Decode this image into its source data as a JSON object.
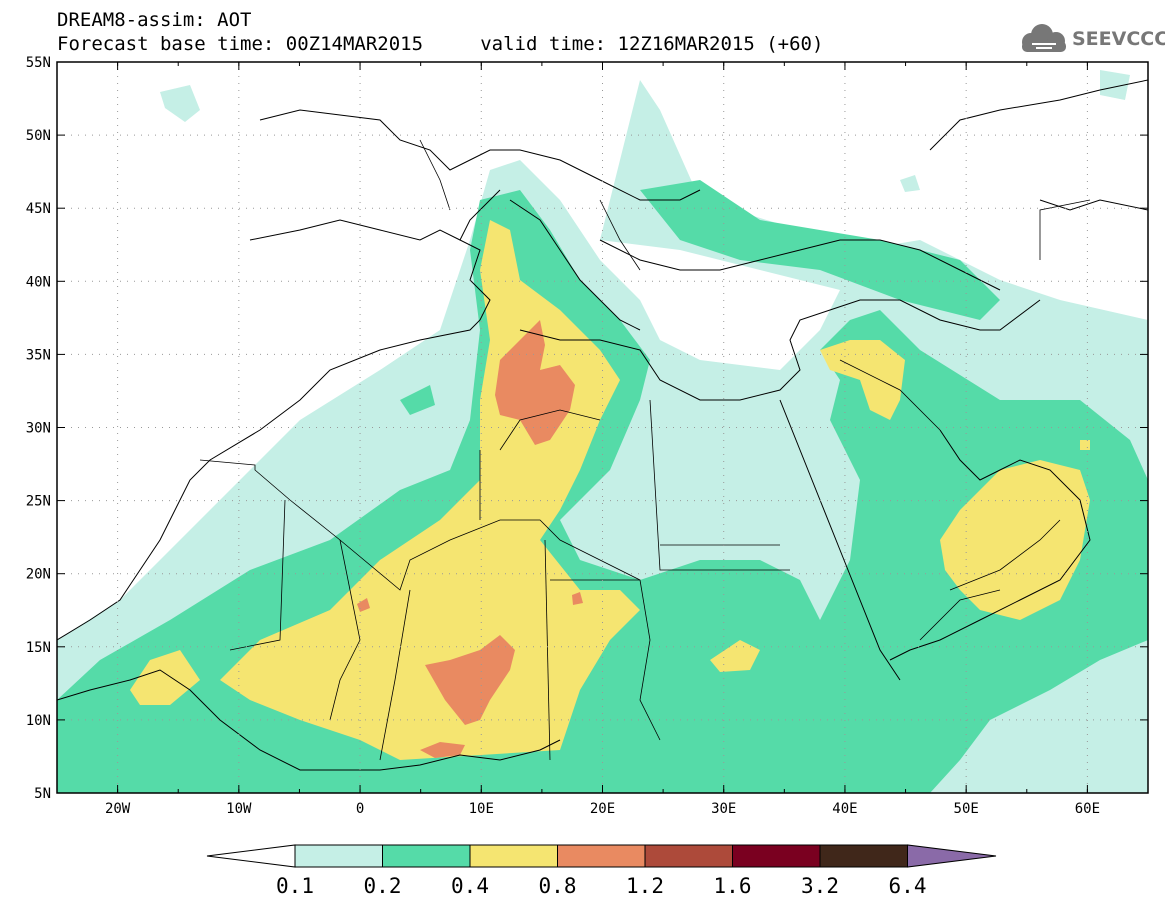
{
  "header": {
    "title_line1": "DREAM8-assim: AOT",
    "title_line2": "Forecast base time: 00Z14MAR2015     valid time: 12Z16MAR2015 (+60)"
  },
  "logo": {
    "text": "SEEVCCC",
    "icon": "cloud-logo-icon"
  },
  "map": {
    "lat_labels": [
      "55N",
      "50N",
      "45N",
      "40N",
      "35N",
      "30N",
      "25N",
      "20N",
      "15N",
      "10N",
      "5N"
    ],
    "lon_labels": [
      "20W",
      "10W",
      "0",
      "10E",
      "20E",
      "30E",
      "40E",
      "50E",
      "60E"
    ],
    "lon_range": [
      -25,
      65
    ],
    "lat_range": [
      5,
      55
    ]
  },
  "colorbar": {
    "labels": [
      "0.1",
      "0.2",
      "0.4",
      "0.8",
      "1.2",
      "1.6",
      "3.2",
      "6.4"
    ],
    "colors": [
      "#ffffff",
      "#c5efe6",
      "#55dba8",
      "#f5e571",
      "#e98a61",
      "#ad4a3a",
      "#7a0020",
      "#40271a",
      "#8a6aa8"
    ]
  },
  "colors": {
    "lt_teal": "#c5efe6",
    "teal": "#55dba8",
    "yellow": "#f5e571",
    "orange": "#e98a61"
  }
}
